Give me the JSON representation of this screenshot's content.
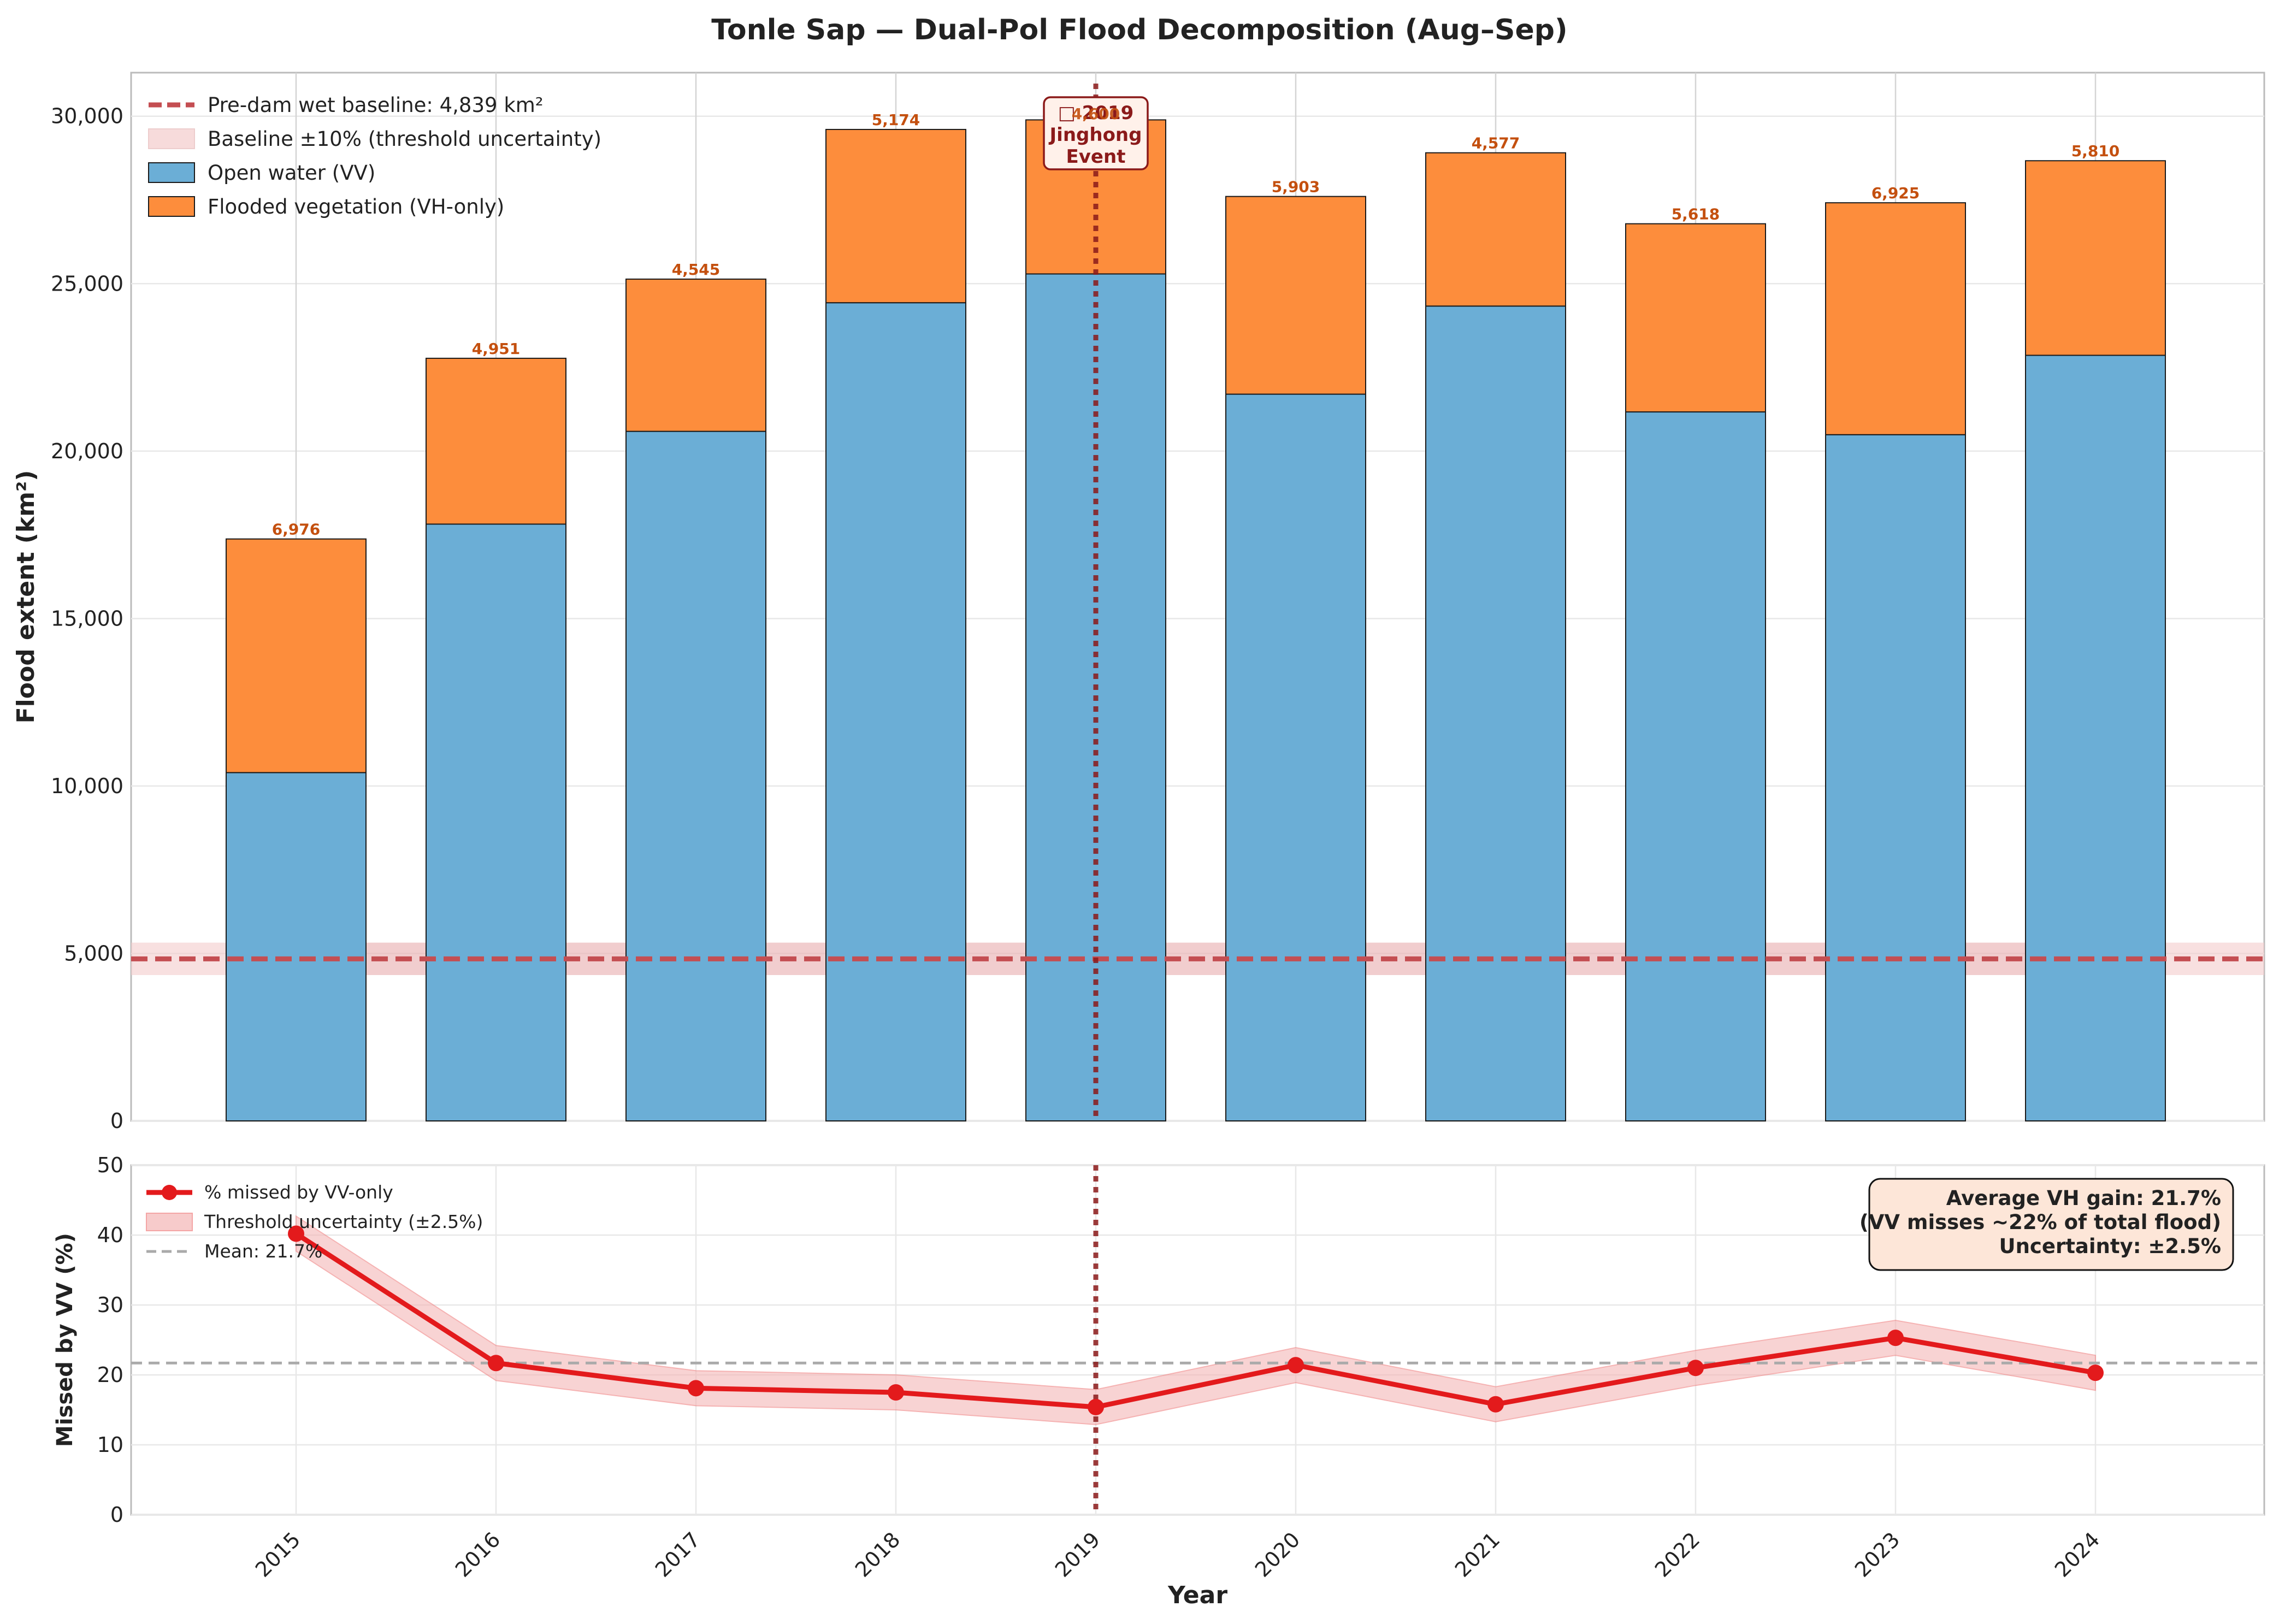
{
  "chart_data": [
    {
      "type": "bar",
      "title": "Tonle Sap — Dual-Pol Flood Decomposition (Aug–Sep)",
      "xlabel": "",
      "ylabel": "Flood extent (km²)",
      "ylim": [
        0,
        31300
      ],
      "yticks": [
        0,
        5000,
        10000,
        15000,
        20000,
        25000,
        30000
      ],
      "ytick_labels": [
        "0",
        "5,000",
        "10,000",
        "15,000",
        "20,000",
        "25,000",
        "30,000"
      ],
      "categories": [
        "2015",
        "2016",
        "2017",
        "2018",
        "2019",
        "2020",
        "2021",
        "2022",
        "2023",
        "2024"
      ],
      "stacked": true,
      "grid": true,
      "legend_position": "top-left",
      "series": [
        {
          "name": "Open water (VV)",
          "color": "#6baed6",
          "values": [
            10400,
            17820,
            20590,
            24430,
            25290,
            21700,
            24330,
            21170,
            20490,
            22860
          ]
        },
        {
          "name": "Flooded vegetation (VH-only)",
          "color": "#fd8d3c",
          "values": [
            6976,
            4951,
            4545,
            5174,
            4600,
            5903,
            4577,
            5618,
            6925,
            5810
          ]
        }
      ],
      "bar_labels": [
        "6,976",
        "4,951",
        "4,545",
        "5,174",
        "4,600",
        "5,903",
        "4,577",
        "5,618",
        "6,925",
        "5,810"
      ],
      "baseline": {
        "label": "Pre-dam wet baseline: 4,839 km²",
        "value": 4839,
        "color": "#c44e52"
      },
      "baseline_band": {
        "label": "Baseline ±10% (threshold uncertainty)",
        "low": 4355,
        "high": 5323,
        "color": "#f4cccc"
      },
      "event_line": {
        "x": "2019",
        "color": "#8b1a1a"
      },
      "event_annotation": [
        "□ 2019",
        "Jinghong",
        "Event"
      ]
    },
    {
      "type": "line",
      "xlabel": "Year",
      "ylabel": "Missed by VV (%)",
      "ylim": [
        0,
        50
      ],
      "yticks": [
        0,
        10,
        20,
        30,
        40,
        50
      ],
      "ytick_labels": [
        "0",
        "10",
        "20",
        "30",
        "40",
        "50"
      ],
      "categories": [
        "2015",
        "2016",
        "2017",
        "2018",
        "2019",
        "2020",
        "2021",
        "2022",
        "2023",
        "2024"
      ],
      "grid": true,
      "legend_position": "top-left",
      "series": [
        {
          "name": "% missed by VV-only",
          "color": "#e31a1c",
          "values": [
            40.2,
            21.7,
            18.1,
            17.5,
            15.4,
            21.4,
            15.8,
            21.0,
            25.3,
            20.3
          ]
        }
      ],
      "band": {
        "name": "Threshold uncertainty (±2.5%)",
        "delta": 2.5,
        "color": "#f4b6b6"
      },
      "mean_line": {
        "name": "Mean: 21.7%",
        "value": 21.7,
        "color": "#aaaaaa"
      },
      "event_line": {
        "x": "2019",
        "color": "#8b1a1a"
      },
      "info_box": [
        "Average VH gain: 21.7%",
        "(VV misses ~22% of total flood)",
        "Uncertainty: ±2.5%"
      ]
    }
  ]
}
